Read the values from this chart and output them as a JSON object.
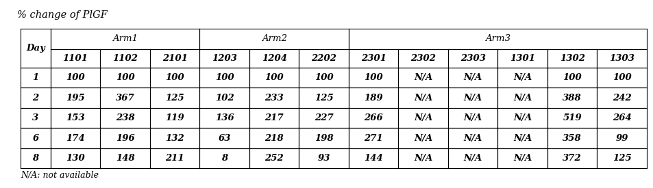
{
  "title": "% change of PlGF",
  "footnote": "N/A: not available",
  "col_headers": [
    "Day",
    "1101",
    "1102",
    "2101",
    "1203",
    "1204",
    "2202",
    "2301",
    "2302",
    "2303",
    "1301",
    "1302",
    "1303"
  ],
  "arm_labels": [
    "Arm1",
    "Arm2",
    "Arm3"
  ],
  "arm_col_starts": [
    1,
    4,
    7
  ],
  "arm_col_ends": [
    3,
    6,
    12
  ],
  "rows": [
    [
      "1",
      "100",
      "100",
      "100",
      "100",
      "100",
      "100",
      "100",
      "N/A",
      "N/A",
      "N/A",
      "100",
      "100"
    ],
    [
      "2",
      "195",
      "367",
      "125",
      "102",
      "233",
      "125",
      "189",
      "N/A",
      "N/A",
      "N/A",
      "388",
      "242"
    ],
    [
      "3",
      "153",
      "238",
      "119",
      "136",
      "217",
      "227",
      "266",
      "N/A",
      "N/A",
      "N/A",
      "519",
      "264"
    ],
    [
      "6",
      "174",
      "196",
      "132",
      "63",
      "218",
      "198",
      "271",
      "N/A",
      "N/A",
      "N/A",
      "358",
      "99"
    ],
    [
      "8",
      "130",
      "148",
      "211",
      "8",
      "252",
      "93",
      "144",
      "N/A",
      "N/A",
      "N/A",
      "372",
      "125"
    ]
  ],
  "bg_color": "#ffffff",
  "border_color": "#000000",
  "text_color": "#000000",
  "title_fontsize": 10.5,
  "arm_fontsize": 9.5,
  "subhdr_fontsize": 9.5,
  "cell_fontsize": 9.5,
  "footnote_fontsize": 9.0,
  "fig_width": 9.54,
  "fig_height": 2.75,
  "dpi": 100
}
